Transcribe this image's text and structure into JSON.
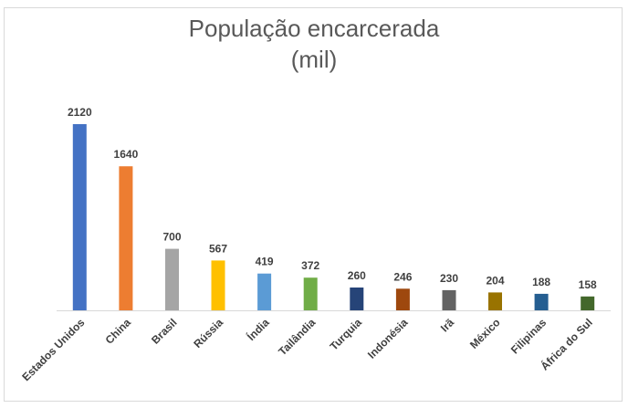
{
  "chart_data": {
    "type": "bar",
    "title_lines": [
      "População encarcerada",
      "(mil)"
    ],
    "categories": [
      "Estados Unidos",
      "China",
      "Brasil",
      "Rússia",
      "Índia",
      "Tailândia",
      "Turquia",
      "Indonésia",
      "Irã",
      "México",
      "Filipinas",
      "África do Sul"
    ],
    "values": [
      2120,
      1640,
      700,
      567,
      419,
      372,
      260,
      246,
      230,
      204,
      188,
      158
    ],
    "colors": [
      "#4472C4",
      "#ED7D31",
      "#A5A5A5",
      "#FFC000",
      "#5B9BD5",
      "#70AD47",
      "#264478",
      "#9E480E",
      "#636363",
      "#997300",
      "#255E91",
      "#43682B"
    ],
    "xlabel": "",
    "ylabel": "",
    "ylim": [
      0,
      2120
    ],
    "grid": false,
    "legend": "none",
    "data_labels": true
  }
}
